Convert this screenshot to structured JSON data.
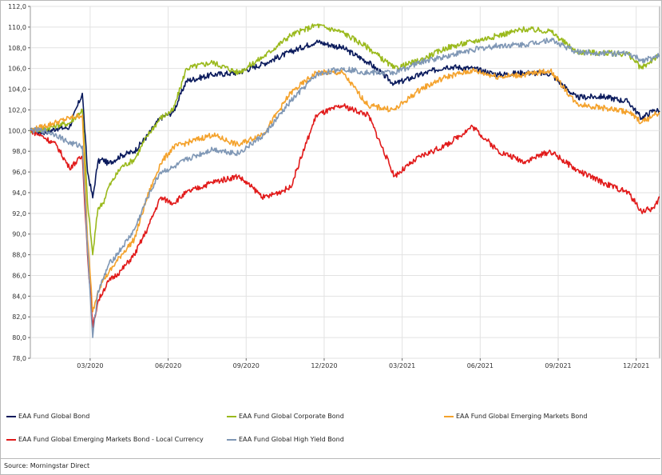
{
  "source": "Source: Morningstar Direct",
  "chart_data": {
    "type": "line",
    "title": "",
    "xlabel": "",
    "ylabel": "",
    "ylim": [
      78.0,
      112.0
    ],
    "y_ticks": [
      "78,0",
      "80,0",
      "82,0",
      "84,0",
      "86,0",
      "88,0",
      "90,0",
      "92,0",
      "94,0",
      "96,0",
      "98,0",
      "100,0",
      "102,0",
      "104,0",
      "106,0",
      "108,0",
      "110,0",
      "112,0"
    ],
    "x_ticks": [
      "03/2020",
      "06/2020",
      "09/2020",
      "12/2020",
      "03/2021",
      "06/2021",
      "09/2021",
      "12/2021"
    ],
    "x_tick_pos": [
      2.3,
      5.3,
      8.3,
      11.3,
      14.3,
      17.3,
      20.3,
      23.3
    ],
    "xlim": [
      0,
      24.2
    ],
    "grid": true,
    "legend_position": "bottom",
    "x": [
      0.0,
      0.5,
      1.0,
      1.5,
      2.0,
      2.2,
      2.4,
      2.6,
      2.8,
      3.0,
      3.5,
      4.0,
      4.5,
      5.0,
      5.5,
      6.0,
      7.0,
      8.0,
      9.0,
      10.0,
      11.0,
      12.0,
      13.0,
      14.0,
      15.0,
      16.0,
      17.0,
      18.0,
      19.0,
      20.0,
      21.0,
      22.0,
      23.0,
      23.5,
      24.0,
      24.2
    ],
    "series": [
      {
        "name": "EAA Fund Global Bond",
        "color": "#0a1a5c",
        "values": [
          100.0,
          99.8,
          100.2,
          100.3,
          103.6,
          96.0,
          93.5,
          97.0,
          97.2,
          96.8,
          97.6,
          98.0,
          99.5,
          101.2,
          101.8,
          104.8,
          105.4,
          105.6,
          106.5,
          107.6,
          108.6,
          108.0,
          106.6,
          104.5,
          105.4,
          106.2,
          106.0,
          105.4,
          105.6,
          105.5,
          103.2,
          103.3,
          102.8,
          101.2,
          102.0,
          101.9
        ]
      },
      {
        "name": "EAA Fund Global Corporate Bond",
        "color": "#9ab91c",
        "values": [
          100.0,
          100.1,
          100.5,
          100.7,
          102.0,
          93.0,
          88.0,
          92.5,
          93.0,
          94.5,
          96.5,
          97.2,
          99.5,
          101.2,
          102.0,
          106.0,
          106.6,
          105.6,
          107.2,
          109.2,
          110.2,
          109.5,
          108.0,
          106.0,
          106.8,
          108.0,
          108.6,
          109.2,
          109.8,
          109.6,
          107.6,
          107.5,
          107.4,
          106.0,
          107.0,
          107.2
        ]
      },
      {
        "name": "EAA Fund Global Emerging Markets Bond",
        "color": "#f4a22c",
        "values": [
          100.0,
          100.4,
          100.8,
          101.2,
          101.5,
          89.5,
          82.5,
          84.5,
          85.6,
          86.2,
          88.0,
          89.5,
          93.6,
          96.8,
          98.4,
          98.8,
          99.6,
          98.6,
          99.8,
          103.6,
          105.6,
          105.6,
          102.4,
          102.0,
          104.0,
          105.2,
          105.8,
          105.2,
          105.4,
          105.8,
          102.6,
          102.2,
          101.8,
          100.8,
          101.5,
          101.8
        ]
      },
      {
        "name": "EAA Fund Global Emerging Markets Bond - Local Currency",
        "color": "#e11a1a",
        "values": [
          100.0,
          99.4,
          98.6,
          96.4,
          97.5,
          88.0,
          81.0,
          83.5,
          84.5,
          85.4,
          86.5,
          88.0,
          90.5,
          93.5,
          93.0,
          94.0,
          95.0,
          95.6,
          93.5,
          94.5,
          101.5,
          102.4,
          101.5,
          95.6,
          97.5,
          98.6,
          100.4,
          98.0,
          97.0,
          98.0,
          96.2,
          95.0,
          94.0,
          92.2,
          92.5,
          93.6
        ]
      },
      {
        "name": "EAA Fund Global High Yield Bond",
        "color": "#7f97b5",
        "values": [
          100.0,
          100.0,
          99.6,
          98.8,
          98.5,
          88.5,
          80.0,
          84.5,
          85.6,
          87.0,
          88.6,
          90.4,
          93.5,
          96.0,
          96.4,
          97.2,
          98.2,
          97.8,
          99.6,
          102.8,
          105.4,
          106.0,
          105.6,
          105.6,
          106.6,
          107.2,
          107.8,
          108.2,
          108.3,
          108.8,
          107.6,
          107.5,
          107.4,
          106.8,
          107.0,
          107.3
        ]
      }
    ]
  }
}
